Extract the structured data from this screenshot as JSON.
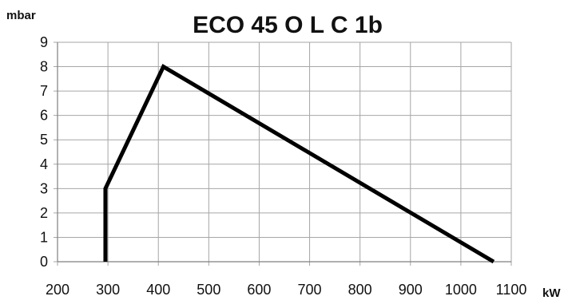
{
  "chart_data": {
    "type": "line",
    "title": "ECO 45 O L C 1b",
    "xlabel": "kW",
    "ylabel": "mbar",
    "xlim": [
      200,
      1100
    ],
    "ylim": [
      0,
      9
    ],
    "x_ticks": [
      "200",
      "300",
      "400",
      "500",
      "600",
      "700",
      "800",
      "900",
      "1000",
      "1100"
    ],
    "y_ticks": [
      "0",
      "1",
      "2",
      "3",
      "4",
      "5",
      "6",
      "7",
      "8",
      "9"
    ],
    "grid": true,
    "series": [
      {
        "x": [
          295,
          295,
          410,
          1065
        ],
        "y": [
          0,
          3,
          8,
          0
        ]
      }
    ],
    "colors": {
      "line": "#000000",
      "grid": "#a6a6a6",
      "axis": "#7f7f7f"
    }
  }
}
